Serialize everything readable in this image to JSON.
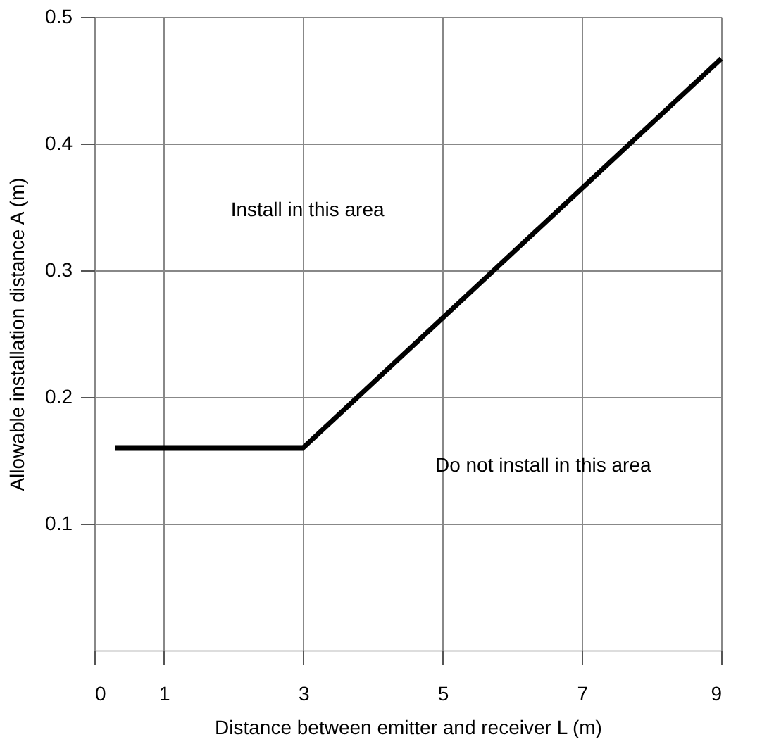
{
  "chart_data": {
    "type": "line",
    "xlabel": "Distance between emitter and receiver L (m)",
    "ylabel": "Allowable installation distance A (m)",
    "x": [
      0.3,
      3,
      9
    ],
    "series": [
      {
        "color": "#000000",
        "values": [
          0.16,
          0.16,
          0.467
        ]
      }
    ],
    "xlim": [
      0,
      9
    ],
    "xticks": [
      0,
      1,
      3,
      5,
      7,
      9
    ],
    "ylim": [
      0,
      0.5
    ],
    "yticks": [
      0.1,
      0.2,
      0.3,
      0.4,
      0.5
    ],
    "grid": true,
    "marker": "none",
    "line_style": "solid",
    "annotations": [
      "Install in this area",
      "Do not install in this area"
    ]
  }
}
